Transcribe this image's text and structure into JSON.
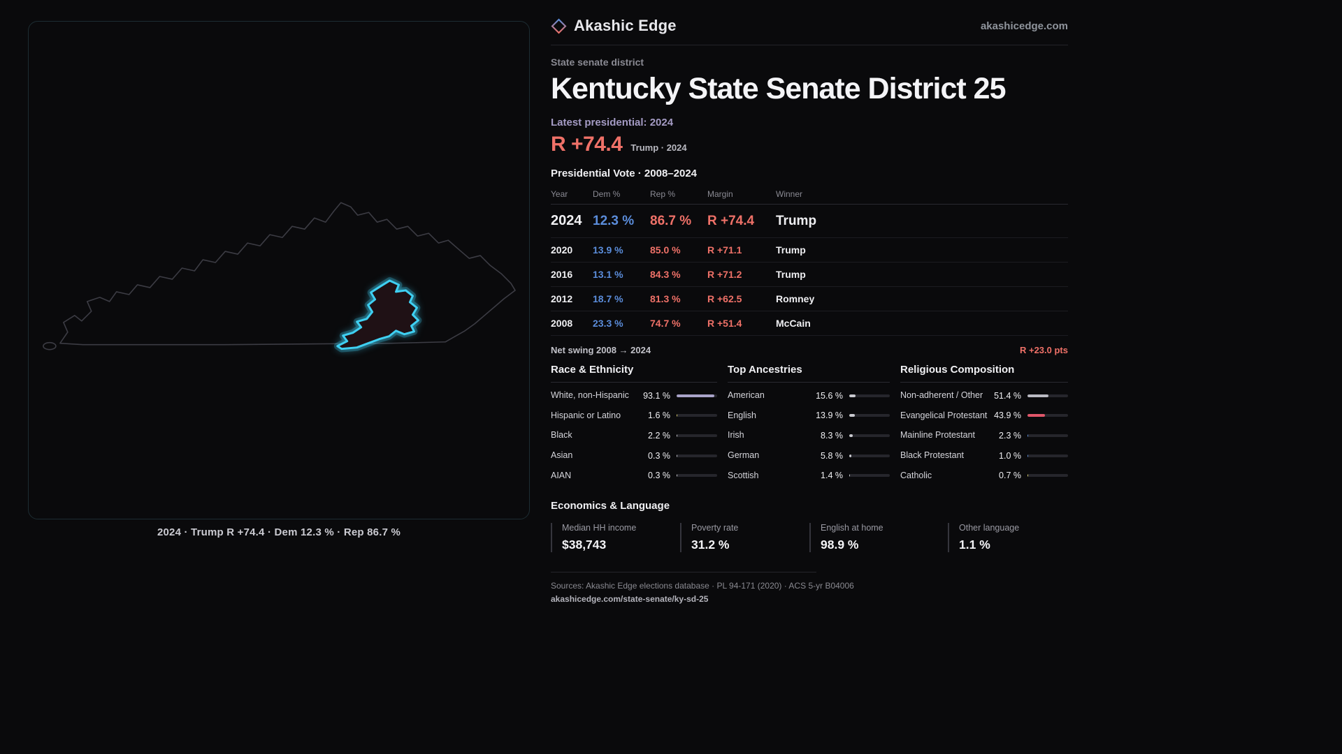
{
  "header": {
    "brand": "Akashic Edge",
    "site": "akashicedge.com"
  },
  "map": {
    "caption": "2024 · Trump R +74.4 · Dem 12.3 % · Rep 86.7 %"
  },
  "overview": {
    "kicker": "State senate district",
    "title": "Kentucky State Senate District 25",
    "latest_label": "Latest presidential: 2024",
    "margin": "R +74.4",
    "margin_note": "Trump · 2024"
  },
  "vote_table": {
    "title": "Presidential Vote · 2008–2024",
    "headers": {
      "year": "Year",
      "dem": "Dem %",
      "rep": "Rep %",
      "margin": "Margin",
      "winner": "Winner"
    },
    "rows": [
      {
        "year": "2024",
        "dem": "12.3 %",
        "rep": "86.7 %",
        "margin": "R +74.4",
        "winner": "Trump"
      },
      {
        "year": "2020",
        "dem": "13.9 %",
        "rep": "85.0 %",
        "margin": "R +71.1",
        "winner": "Trump"
      },
      {
        "year": "2016",
        "dem": "13.1 %",
        "rep": "84.3 %",
        "margin": "R +71.2",
        "winner": "Trump"
      },
      {
        "year": "2012",
        "dem": "18.7 %",
        "rep": "81.3 %",
        "margin": "R +62.5",
        "winner": "Romney"
      },
      {
        "year": "2008",
        "dem": "23.3 %",
        "rep": "74.7 %",
        "margin": "R +51.4",
        "winner": "McCain"
      }
    ]
  },
  "swing": {
    "label": "Net swing 2008 → 2024",
    "value": "R +23.0 pts"
  },
  "demographics": {
    "race": {
      "title": "Race & Ethnicity",
      "items": [
        {
          "label": "White, non-Hispanic",
          "value": "93.1 %",
          "pct": 93.1,
          "color": "#a9a3c9"
        },
        {
          "label": "Hispanic or Latino",
          "value": "1.6 %",
          "pct": 1.6,
          "color": "#d9cd6a"
        },
        {
          "label": "Black",
          "value": "2.2 %",
          "pct": 2.2,
          "color": "#c9c9cf"
        },
        {
          "label": "Asian",
          "value": "0.3 %",
          "pct": 0.3,
          "color": "#c9c9cf"
        },
        {
          "label": "AIAN",
          "value": "0.3 %",
          "pct": 0.3,
          "color": "#c9c9cf"
        }
      ]
    },
    "ancestries": {
      "title": "Top Ancestries",
      "items": [
        {
          "label": "American",
          "value": "15.6 %",
          "pct": 15.6,
          "color": "#c9c9cf"
        },
        {
          "label": "English",
          "value": "13.9 %",
          "pct": 13.9,
          "color": "#c9c9cf"
        },
        {
          "label": "Irish",
          "value": "8.3 %",
          "pct": 8.3,
          "color": "#c9c9cf"
        },
        {
          "label": "German",
          "value": "5.8 %",
          "pct": 5.8,
          "color": "#c9c9cf"
        },
        {
          "label": "Scottish",
          "value": "1.4 %",
          "pct": 1.4,
          "color": "#c9c9cf"
        }
      ]
    },
    "religion": {
      "title": "Religious Composition",
      "items": [
        {
          "label": "Non-adherent / Other",
          "value": "51.4 %",
          "pct": 51.4,
          "color": "#b9b9c2"
        },
        {
          "label": "Evangelical Protestant",
          "value": "43.9 %",
          "pct": 43.9,
          "color": "#e0566a"
        },
        {
          "label": "Mainline Protestant",
          "value": "2.3 %",
          "pct": 2.3,
          "color": "#5b8dd9"
        },
        {
          "label": "Black Protestant",
          "value": "1.0 %",
          "pct": 1.0,
          "color": "#5b8dd9"
        },
        {
          "label": "Catholic",
          "value": "0.7 %",
          "pct": 0.7,
          "color": "#d9cd6a"
        }
      ]
    }
  },
  "economics": {
    "title": "Economics & Language",
    "stats": [
      {
        "label": "Median HH income",
        "value": "$38,743"
      },
      {
        "label": "Poverty rate",
        "value": "31.2 %"
      },
      {
        "label": "English at home",
        "value": "98.9 %"
      },
      {
        "label": "Other language",
        "value": "1.1 %"
      }
    ]
  },
  "footer": {
    "sources": "Sources: Akashic Edge elections database · PL 94-171 (2020) · ACS 5-yr B04006",
    "permalink": "akashicedge.com/state-senate/ky-sd-25"
  },
  "colors": {
    "dem": "#5b8ddb",
    "rep": "#ef7168",
    "accent_cyan": "#3fd0f2"
  }
}
